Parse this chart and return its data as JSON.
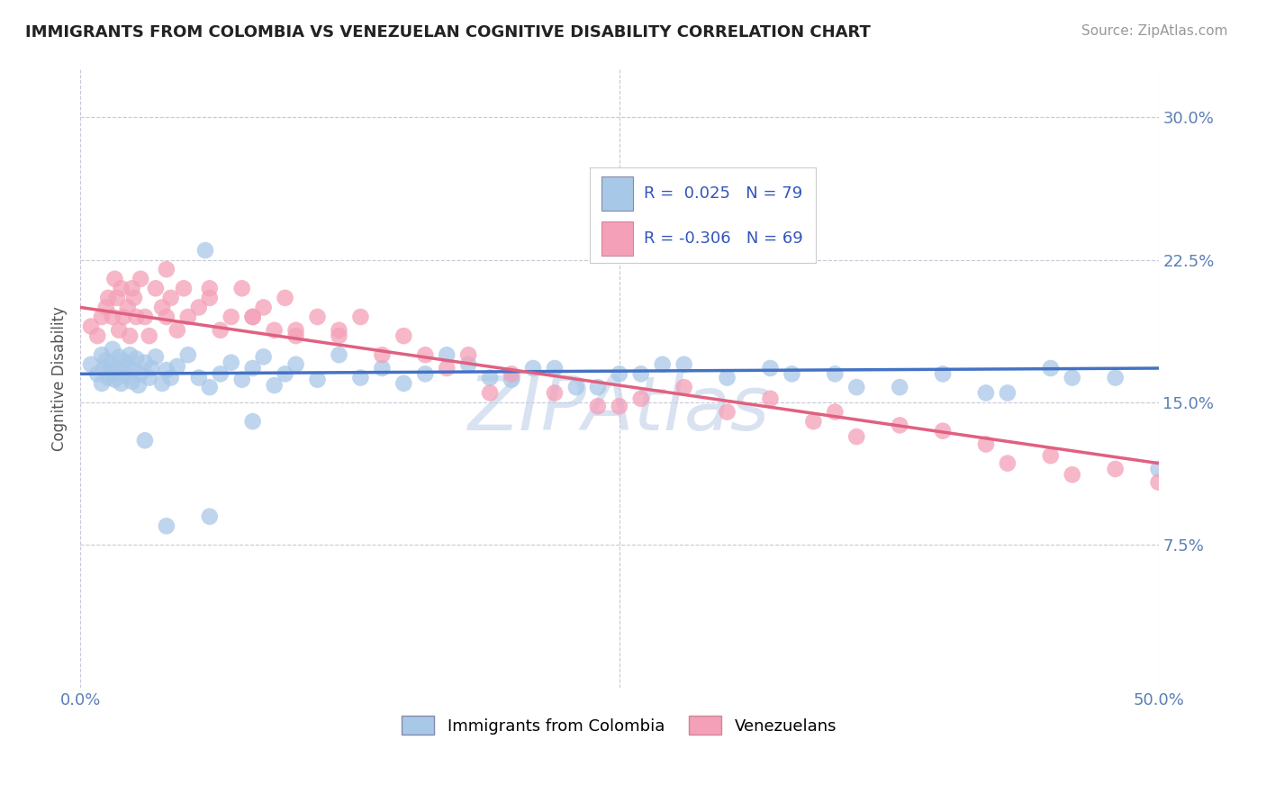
{
  "title": "IMMIGRANTS FROM COLOMBIA VS VENEZUELAN COGNITIVE DISABILITY CORRELATION CHART",
  "source": "Source: ZipAtlas.com",
  "ylabel": "Cognitive Disability",
  "xlim": [
    0.0,
    0.5
  ],
  "ylim": [
    0.0,
    0.325
  ],
  "yticks": [
    0.075,
    0.15,
    0.225,
    0.3
  ],
  "ytick_labels": [
    "7.5%",
    "15.0%",
    "22.5%",
    "30.0%"
  ],
  "color_blue": "#A8C8E8",
  "color_pink": "#F4A0B8",
  "color_blue_line": "#4472C4",
  "color_pink_line": "#E06080",
  "watermark": "ZIPAtlas",
  "colombia_x": [
    0.005,
    0.008,
    0.01,
    0.01,
    0.011,
    0.012,
    0.013,
    0.014,
    0.015,
    0.015,
    0.016,
    0.017,
    0.018,
    0.019,
    0.02,
    0.02,
    0.021,
    0.022,
    0.023,
    0.024,
    0.025,
    0.026,
    0.027,
    0.028,
    0.03,
    0.032,
    0.033,
    0.035,
    0.038,
    0.04,
    0.042,
    0.045,
    0.05,
    0.055,
    0.058,
    0.06,
    0.065,
    0.07,
    0.075,
    0.08,
    0.085,
    0.09,
    0.095,
    0.1,
    0.11,
    0.12,
    0.13,
    0.14,
    0.15,
    0.16,
    0.18,
    0.2,
    0.22,
    0.24,
    0.25,
    0.27,
    0.3,
    0.32,
    0.35,
    0.38,
    0.4,
    0.42,
    0.45,
    0.48,
    0.5,
    0.17,
    0.19,
    0.21,
    0.23,
    0.26,
    0.28,
    0.33,
    0.36,
    0.43,
    0.46,
    0.08,
    0.06,
    0.04,
    0.03
  ],
  "colombia_y": [
    0.17,
    0.165,
    0.16,
    0.175,
    0.168,
    0.172,
    0.163,
    0.17,
    0.165,
    0.178,
    0.162,
    0.168,
    0.174,
    0.16,
    0.166,
    0.172,
    0.164,
    0.17,
    0.175,
    0.161,
    0.167,
    0.173,
    0.159,
    0.165,
    0.171,
    0.163,
    0.168,
    0.174,
    0.16,
    0.167,
    0.163,
    0.169,
    0.175,
    0.163,
    0.23,
    0.158,
    0.165,
    0.171,
    0.162,
    0.168,
    0.174,
    0.159,
    0.165,
    0.17,
    0.162,
    0.175,
    0.163,
    0.168,
    0.16,
    0.165,
    0.17,
    0.162,
    0.168,
    0.158,
    0.165,
    0.17,
    0.163,
    0.168,
    0.165,
    0.158,
    0.165,
    0.155,
    0.168,
    0.163,
    0.115,
    0.175,
    0.163,
    0.168,
    0.158,
    0.165,
    0.17,
    0.165,
    0.158,
    0.155,
    0.163,
    0.14,
    0.09,
    0.085,
    0.13
  ],
  "venezuela_x": [
    0.005,
    0.008,
    0.01,
    0.012,
    0.013,
    0.015,
    0.016,
    0.017,
    0.018,
    0.019,
    0.02,
    0.022,
    0.023,
    0.024,
    0.025,
    0.026,
    0.028,
    0.03,
    0.032,
    0.035,
    0.038,
    0.04,
    0.042,
    0.045,
    0.048,
    0.05,
    0.055,
    0.06,
    0.065,
    0.07,
    0.075,
    0.08,
    0.085,
    0.09,
    0.095,
    0.1,
    0.11,
    0.12,
    0.13,
    0.14,
    0.15,
    0.16,
    0.17,
    0.18,
    0.19,
    0.2,
    0.22,
    0.25,
    0.28,
    0.3,
    0.32,
    0.35,
    0.38,
    0.4,
    0.42,
    0.45,
    0.48,
    0.5,
    0.24,
    0.26,
    0.34,
    0.36,
    0.43,
    0.46,
    0.1,
    0.12,
    0.08,
    0.06,
    0.04
  ],
  "venezuela_y": [
    0.19,
    0.185,
    0.195,
    0.2,
    0.205,
    0.195,
    0.215,
    0.205,
    0.188,
    0.21,
    0.195,
    0.2,
    0.185,
    0.21,
    0.205,
    0.195,
    0.215,
    0.195,
    0.185,
    0.21,
    0.2,
    0.195,
    0.205,
    0.188,
    0.21,
    0.195,
    0.2,
    0.205,
    0.188,
    0.195,
    0.21,
    0.195,
    0.2,
    0.188,
    0.205,
    0.188,
    0.195,
    0.185,
    0.195,
    0.175,
    0.185,
    0.175,
    0.168,
    0.175,
    0.155,
    0.165,
    0.155,
    0.148,
    0.158,
    0.145,
    0.152,
    0.145,
    0.138,
    0.135,
    0.128,
    0.122,
    0.115,
    0.108,
    0.148,
    0.152,
    0.14,
    0.132,
    0.118,
    0.112,
    0.185,
    0.188,
    0.195,
    0.21,
    0.22
  ],
  "blue_trend_x0": 0.0,
  "blue_trend_y0": 0.165,
  "blue_trend_x1": 0.5,
  "blue_trend_y1": 0.168,
  "pink_trend_x0": 0.0,
  "pink_trend_y0": 0.2,
  "pink_trend_x1": 0.5,
  "pink_trend_y1": 0.118
}
